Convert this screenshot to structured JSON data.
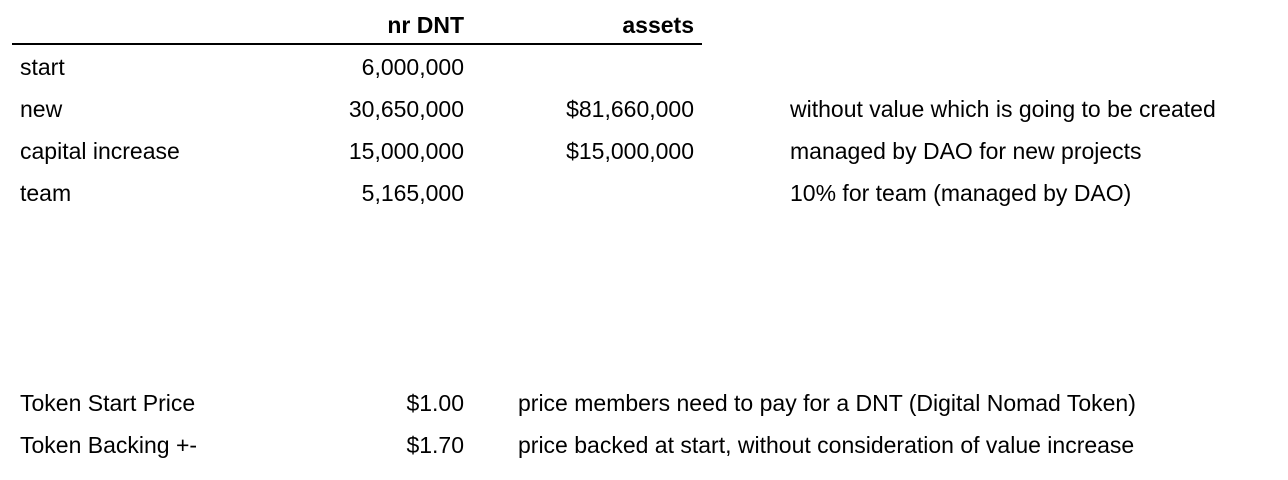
{
  "header": {
    "nr_dnt": "nr DNT",
    "assets": "assets"
  },
  "rows": [
    {
      "label": "start",
      "nr_dnt": "6,000,000",
      "assets": "",
      "note": ""
    },
    {
      "label": "new",
      "nr_dnt": "30,650,000",
      "assets": "$81,660,000",
      "note": "without value which is going to be created"
    },
    {
      "label": "capital increase",
      "nr_dnt": "15,000,000",
      "assets": "$15,000,000",
      "note": "managed by DAO for new projects"
    },
    {
      "label": "team",
      "nr_dnt": "5,165,000",
      "assets": "",
      "note": "10% for team (managed by DAO)"
    }
  ],
  "prices": [
    {
      "label": "Token Start Price",
      "value": "$1.00",
      "note": "price members need to pay for a DNT (Digital Nomad Token)"
    },
    {
      "label": "Token Backing +-",
      "value": "$1.70",
      "note": "price backed at start, without consideration of value increase"
    }
  ]
}
